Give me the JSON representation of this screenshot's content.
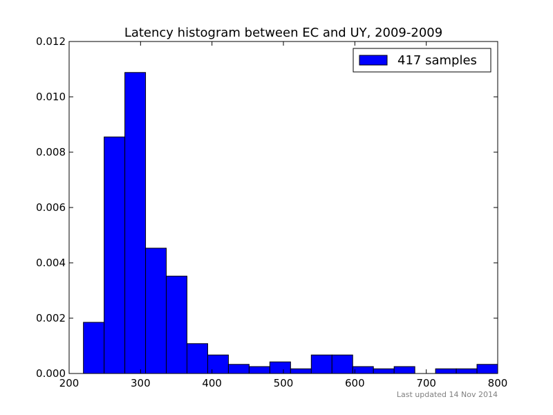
{
  "chart_data": {
    "type": "bar",
    "title": "Latency histogram between EC and UY, 2009-2009",
    "xlabel": "",
    "ylabel": "",
    "xlim": [
      200,
      800
    ],
    "ylim": [
      0,
      0.012
    ],
    "x_ticks": [
      200,
      300,
      400,
      500,
      600,
      700,
      800
    ],
    "x_tick_labels": [
      "200",
      "300",
      "400",
      "500",
      "600",
      "700",
      "800"
    ],
    "y_ticks": [
      0,
      0.002,
      0.004,
      0.006,
      0.008,
      0.01,
      0.012
    ],
    "y_tick_labels": [
      "0.000",
      "0.002",
      "0.004",
      "0.006",
      "0.008",
      "0.010",
      "0.012"
    ],
    "grid": false,
    "legend_position": "top-right",
    "series": [
      {
        "name": "417 samples",
        "color": "#0000ff",
        "bins": [
          {
            "x0": 220,
            "x1": 249,
            "value": 0.00185
          },
          {
            "x0": 249,
            "x1": 278,
            "value": 0.00855
          },
          {
            "x0": 278,
            "x1": 307,
            "value": 0.01088
          },
          {
            "x0": 307,
            "x1": 336,
            "value": 0.00453
          },
          {
            "x0": 336,
            "x1": 365,
            "value": 0.00352
          },
          {
            "x0": 365,
            "x1": 394,
            "value": 0.00108
          },
          {
            "x0": 394,
            "x1": 423,
            "value": 0.00067
          },
          {
            "x0": 423,
            "x1": 452,
            "value": 0.00033
          },
          {
            "x0": 452,
            "x1": 481,
            "value": 0.00025
          },
          {
            "x0": 481,
            "x1": 510,
            "value": 0.00042
          },
          {
            "x0": 510,
            "x1": 539,
            "value": 0.00017
          },
          {
            "x0": 539,
            "x1": 568,
            "value": 0.00067
          },
          {
            "x0": 568,
            "x1": 597,
            "value": 0.00067
          },
          {
            "x0": 597,
            "x1": 626,
            "value": 0.00025
          },
          {
            "x0": 626,
            "x1": 655,
            "value": 0.00017
          },
          {
            "x0": 655,
            "x1": 684,
            "value": 0.00025
          },
          {
            "x0": 684,
            "x1": 713,
            "value": 0
          },
          {
            "x0": 713,
            "x1": 742,
            "value": 0.00017
          },
          {
            "x0": 742,
            "x1": 771,
            "value": 0.00017
          },
          {
            "x0": 771,
            "x1": 800,
            "value": 0.00033
          }
        ]
      }
    ],
    "footer": "Last updated 14 Nov 2014"
  }
}
